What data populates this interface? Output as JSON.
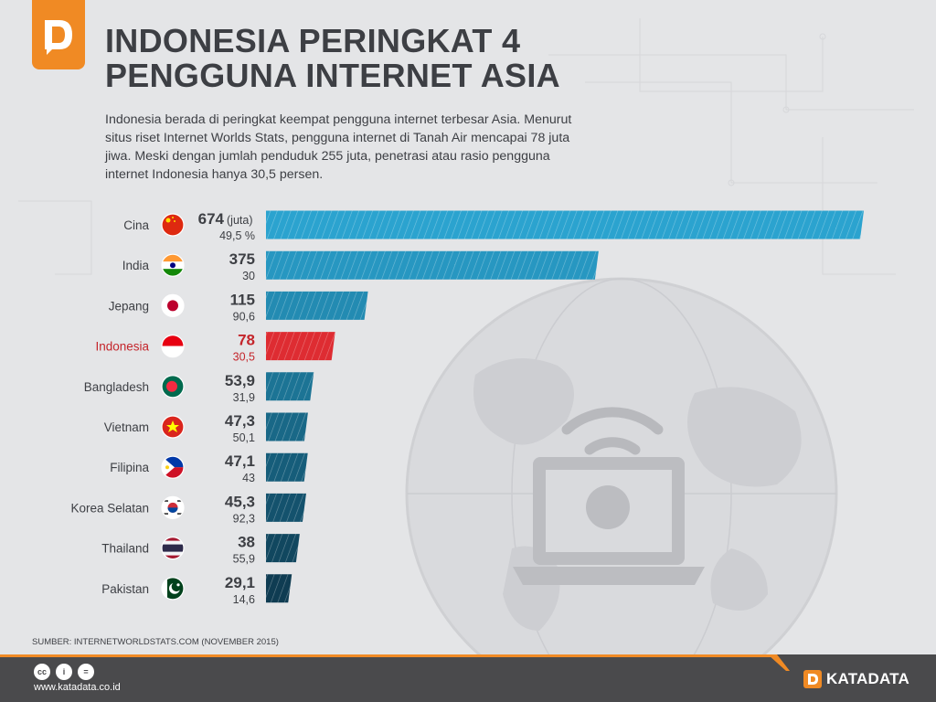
{
  "header": {
    "title_line1": "INDONESIA PERINGKAT 4",
    "title_line2": "PENGGUNA INTERNET ASIA",
    "description": "Indonesia berada di peringkat keempat pengguna internet terbesar Asia. Menurut situs riset Internet Worlds Stats, pengguna internet di Tanah Air mencapai 78 juta jiwa. Meski dengan jumlah penduduk 255 juta, penetrasi atau rasio pengguna internet Indonesia hanya 30,5 persen."
  },
  "chart_data": {
    "type": "bar",
    "orientation": "horizontal",
    "unit_label": "(juta)",
    "categories": [
      "Cina",
      "India",
      "Jepang",
      "Indonesia",
      "Bangladesh",
      "Vietnam",
      "Filipina",
      "Korea Selatan",
      "Thailand",
      "Pakistan"
    ],
    "value_labels": [
      "674",
      "375",
      "115",
      "78",
      "53,9",
      "47,3",
      "47,1",
      "45,3",
      "38",
      "29,1"
    ],
    "values": [
      674,
      375,
      115,
      78,
      53.9,
      47.3,
      47.1,
      45.3,
      38,
      29.1
    ],
    "penetration_labels": [
      "49,5 %",
      "30",
      "90,6",
      "30,5",
      "31,9",
      "50,1",
      "43",
      "92,3",
      "55,9",
      "14,6"
    ],
    "penetration": [
      49.5,
      30,
      90.6,
      30.5,
      31.9,
      50.1,
      43,
      92.3,
      55.9,
      14.6
    ],
    "highlight": "Indonesia",
    "colors": {
      "default_gradient": [
        "#2ba3cf",
        "#1a6e8e",
        "#0f3c52"
      ],
      "highlight": "#de2c32",
      "text": "#3d3f44",
      "highlight_text": "#c4252b"
    }
  },
  "flags": [
    "china-flag-icon",
    "india-flag-icon",
    "japan-flag-icon",
    "indonesia-flag-icon",
    "bangladesh-flag-icon",
    "vietnam-flag-icon",
    "philippines-flag-icon",
    "south-korea-flag-icon",
    "thailand-flag-icon",
    "pakistan-flag-icon"
  ],
  "source": "SUMBER: INTERNETWORLDSTATS.COM (NOVEMBER 2015)",
  "footer": {
    "website": "www.katadata.co.id",
    "brand": "KATADATA",
    "cc_icons": [
      "cc-icon",
      "by-icon",
      "nd-icon"
    ],
    "cc_labels": [
      "cc",
      "i",
      "="
    ]
  },
  "colors": {
    "brand_orange": "#f08a24",
    "footer_bg": "#4a4a4c",
    "background": "#e4e5e7"
  }
}
